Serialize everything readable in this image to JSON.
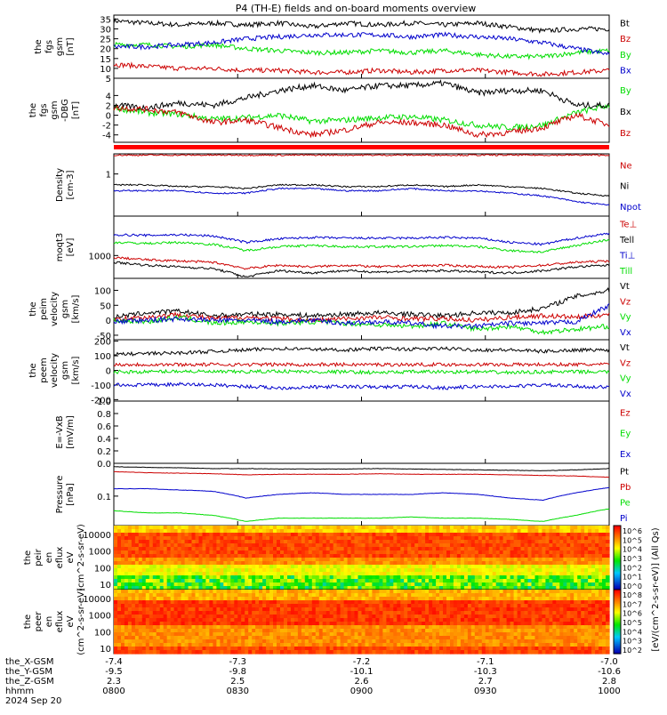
{
  "title": "P4 (TH-E) fields and on-board moments overview",
  "colorbar_label": "[eV/(cm^2-s-sr-eV)] (All Qs)",
  "colorbar_ticks": [
    "10^6",
    "10^5",
    "10^4",
    "10^3",
    "10^2",
    "10^1",
    "10^0"
  ],
  "colorbar_ticks2": [
    "10^8",
    "10^7",
    "10^6",
    "10^5",
    "10^4",
    "10^3",
    "10^2"
  ],
  "colors": {
    "black": "#000000",
    "red": "#cc0000",
    "green": "#00dd00",
    "blue": "#0000cc",
    "bright_red": "#ff0000"
  },
  "footer": {
    "labels": [
      "the_X-GSM",
      "the_Y-GSM",
      "the_Z-GSM",
      "hhmm",
      "2024 Sep 20"
    ],
    "x_row": [
      "-7.4",
      "-7.3",
      "-7.2",
      "-7.1",
      "-7.0"
    ],
    "y_row": [
      "-9.5",
      "-9.8",
      "-10.1",
      "-10.3",
      "-10.6"
    ],
    "z_row": [
      "2.3",
      "2.5",
      "2.6",
      "2.7",
      "2.8"
    ],
    "hhmm_row": [
      "0800",
      "0830",
      "0900",
      "0930",
      "1000"
    ]
  },
  "chart_data": [
    {
      "type": "line",
      "ylabel": "the fgs gsm [nT]",
      "yticks": [
        "35",
        "30",
        "25",
        "20",
        "15",
        "10",
        "5"
      ],
      "ylim": [
        5,
        37
      ],
      "x_range_hhmm": [
        "0800",
        "1000"
      ],
      "series": [
        {
          "name": "Bt",
          "color": "black",
          "values": [
            34,
            33,
            32,
            33,
            32,
            33,
            31,
            33,
            32,
            33,
            32,
            33,
            31,
            29,
            30,
            30
          ]
        },
        {
          "name": "Bz",
          "color": "red",
          "values": [
            12,
            11,
            10,
            10,
            9,
            9,
            8,
            8,
            9,
            8,
            9,
            9,
            8,
            7,
            8,
            9
          ]
        },
        {
          "name": "By",
          "color": "green",
          "values": [
            22,
            22,
            21,
            22,
            20,
            19,
            18,
            18,
            19,
            18,
            19,
            17,
            16,
            16,
            18,
            19
          ]
        },
        {
          "name": "Bx",
          "color": "blue",
          "values": [
            21,
            21,
            22,
            23,
            25,
            26,
            27,
            27,
            27,
            26,
            27,
            26,
            25,
            23,
            20,
            17
          ]
        }
      ]
    },
    {
      "type": "line",
      "ylabel": "the fgs gsm -DBG [nT]",
      "yticks": [
        "4",
        "2",
        "0",
        "-2",
        "-4"
      ],
      "ylim": [
        -5.5,
        7.5
      ],
      "series": [
        {
          "name": "By",
          "color": "green",
          "values": [
            1.5,
            0.5,
            0.2,
            -0.8,
            -0.5,
            0,
            -1.2,
            -1,
            -0.5,
            -0.3,
            -1,
            -2,
            -2.5,
            -2,
            0.5,
            2
          ]
        },
        {
          "name": "Bx",
          "color": "black",
          "values": [
            2,
            1.5,
            2.5,
            2,
            3.5,
            5,
            6,
            5,
            6,
            6,
            6.5,
            4.5,
            5,
            5,
            2,
            2
          ]
        },
        {
          "name": "Bz",
          "color": "red",
          "values": [
            1.5,
            1.2,
            0.5,
            -1.5,
            -1,
            -2.5,
            -4,
            -3,
            -1.5,
            -1.5,
            -2,
            -4,
            -3.5,
            -2.5,
            0,
            -2
          ]
        }
      ]
    },
    {
      "type": "line",
      "ylabel": "Density [cm-3]",
      "yticks": [
        "1"
      ],
      "ylim_log": [
        0.1,
        3
      ],
      "series": [
        {
          "name": "Ne",
          "color": "red",
          "values": [
            2.8,
            2.8,
            2.8,
            2.8,
            2.8,
            2.8,
            2.8,
            2.8,
            2.8,
            2.8,
            2.8,
            2.8,
            2.8,
            2.8,
            2.8,
            2.8
          ]
        },
        {
          "name": "Ni",
          "color": "black",
          "values": [
            0.55,
            0.55,
            0.5,
            0.5,
            0.45,
            0.55,
            0.55,
            0.5,
            0.5,
            0.55,
            0.5,
            0.55,
            0.5,
            0.45,
            0.35,
            0.3
          ]
        },
        {
          "name": "Npot",
          "color": "blue",
          "values": [
            0.4,
            0.4,
            0.4,
            0.35,
            0.35,
            0.45,
            0.45,
            0.4,
            0.4,
            0.45,
            0.4,
            0.4,
            0.35,
            0.3,
            0.22,
            0.18
          ]
        }
      ]
    },
    {
      "type": "line",
      "ylabel": "moqt3 [eV]",
      "yticks": [
        "1000"
      ],
      "ylim_log": [
        300,
        8000
      ],
      "series": [
        {
          "name": "Te⊥",
          "color": "red",
          "values": [
            900,
            800,
            750,
            700,
            500,
            600,
            550,
            600,
            550,
            580,
            600,
            560,
            540,
            600,
            700,
            750
          ]
        },
        {
          "name": "Te∥",
          "color": "black",
          "values": [
            700,
            600,
            550,
            500,
            320,
            450,
            400,
            450,
            420,
            430,
            450,
            420,
            400,
            450,
            550,
            600
          ]
        },
        {
          "name": "Ti⊥",
          "color": "blue",
          "values": [
            3000,
            2900,
            3000,
            2800,
            2000,
            2400,
            2600,
            2500,
            2500,
            2500,
            2600,
            2500,
            2000,
            1800,
            2500,
            3200
          ]
        },
        {
          "name": "Ti∥",
          "color": "green",
          "values": [
            2000,
            1900,
            2000,
            1800,
            1300,
            1600,
            1700,
            1600,
            1600,
            1600,
            1700,
            1600,
            1300,
            1200,
            1700,
            2300
          ]
        }
      ]
    },
    {
      "type": "line",
      "ylabel": "the peim velocity gsm [km/s]",
      "yticks": [
        "100",
        "50",
        "0",
        "-50"
      ],
      "ylim": [
        -65,
        140
      ],
      "series": [
        {
          "name": "Vt",
          "color": "black",
          "values": [
            10,
            25,
            30,
            15,
            20,
            20,
            15,
            20,
            25,
            20,
            15,
            25,
            25,
            40,
            80,
            100
          ]
        },
        {
          "name": "Vz",
          "color": "red",
          "values": [
            5,
            10,
            20,
            5,
            10,
            5,
            0,
            5,
            10,
            5,
            5,
            0,
            10,
            15,
            10,
            20
          ]
        },
        {
          "name": "Vy",
          "color": "green",
          "values": [
            0,
            -5,
            10,
            -10,
            -5,
            -10,
            -5,
            -10,
            -15,
            -20,
            -10,
            -30,
            -20,
            -40,
            -30,
            -20
          ]
        },
        {
          "name": "Vx",
          "color": "blue",
          "values": [
            -5,
            0,
            5,
            0,
            0,
            -5,
            0,
            -10,
            -5,
            -10,
            -20,
            -20,
            -10,
            -10,
            -5,
            50
          ]
        }
      ]
    },
    {
      "type": "line",
      "ylabel": "the peem velocity gsm [km/s]",
      "yticks": [
        "200",
        "100",
        "0",
        "-100",
        "-200"
      ],
      "ylim": [
        -210,
        210
      ],
      "series": [
        {
          "name": "Vt",
          "color": "black",
          "values": [
            110,
            115,
            120,
            130,
            140,
            150,
            145,
            140,
            150,
            145,
            150,
            140,
            140,
            130,
            140,
            140
          ]
        },
        {
          "name": "Vz",
          "color": "red",
          "values": [
            40,
            40,
            40,
            40,
            40,
            40,
            40,
            40,
            40,
            40,
            40,
            40,
            40,
            40,
            40,
            40
          ]
        },
        {
          "name": "Vy",
          "color": "green",
          "values": [
            -10,
            -10,
            -5,
            -10,
            -10,
            -5,
            -10,
            -10,
            -15,
            -10,
            -10,
            -10,
            -15,
            -10,
            -10,
            -10
          ]
        },
        {
          "name": "Vx",
          "color": "blue",
          "values": [
            -100,
            -100,
            -95,
            -100,
            -110,
            -120,
            -115,
            -110,
            -115,
            -110,
            -120,
            -110,
            -110,
            -100,
            -110,
            -115
          ]
        }
      ]
    },
    {
      "type": "line",
      "ylabel": "E=-VxB [mV/m]",
      "yticks": [
        "1.0",
        "0.8",
        "0.6",
        "0.4",
        "0.2",
        "0.0"
      ],
      "ylim": [
        0,
        1
      ],
      "series": [
        {
          "name": "Ez",
          "color": "red",
          "values": []
        },
        {
          "name": "Ey",
          "color": "green",
          "values": []
        },
        {
          "name": "Ex",
          "color": "blue",
          "values": []
        }
      ]
    },
    {
      "type": "line",
      "ylabel": "Pressure [nPa]",
      "yticks": [
        "0.1"
      ],
      "ylim_log": [
        0.02,
        0.6
      ],
      "series": [
        {
          "name": "Pt",
          "color": "black",
          "values": [
            0.5,
            0.48,
            0.47,
            0.45,
            0.45,
            0.44,
            0.44,
            0.44,
            0.45,
            0.44,
            0.43,
            0.42,
            0.41,
            0.4,
            0.42,
            0.45
          ]
        },
        {
          "name": "Pb",
          "color": "red",
          "values": [
            0.38,
            0.36,
            0.35,
            0.34,
            0.32,
            0.33,
            0.33,
            0.33,
            0.34,
            0.33,
            0.33,
            0.33,
            0.32,
            0.31,
            0.3,
            0.28
          ]
        },
        {
          "name": "Pe",
          "color": "green",
          "values": [
            0.045,
            0.04,
            0.04,
            0.035,
            0.025,
            0.03,
            0.03,
            0.03,
            0.03,
            0.032,
            0.03,
            0.03,
            0.028,
            0.025,
            0.035,
            0.05
          ]
        },
        {
          "name": "Pi",
          "color": "blue",
          "values": [
            0.15,
            0.15,
            0.14,
            0.13,
            0.09,
            0.11,
            0.12,
            0.11,
            0.11,
            0.11,
            0.12,
            0.11,
            0.09,
            0.08,
            0.12,
            0.16
          ]
        }
      ]
    },
    {
      "type": "heatmap",
      "ylabel": "the peir en eflux eV (cm^2-s-sr-eV)",
      "yticks": [
        "10000",
        "1000",
        "100",
        "10"
      ]
    },
    {
      "type": "heatmap",
      "ylabel": "the peer en eflux eV (cm^2-s-sr-eV)",
      "yticks": [
        "10000",
        "1000",
        "100",
        "10"
      ]
    }
  ]
}
